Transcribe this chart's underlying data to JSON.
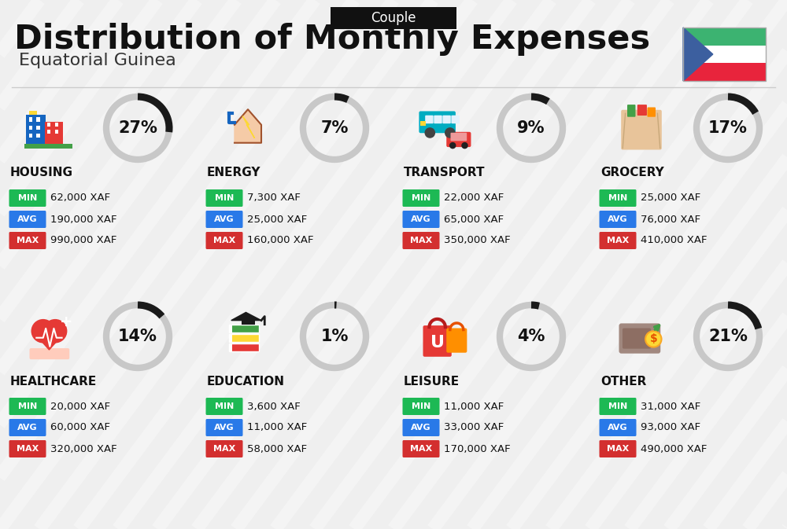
{
  "title": "Distribution of Monthly Expenses",
  "subtitle": "Equatorial Guinea",
  "top_label": "Couple",
  "bg_color": "#efefef",
  "categories": [
    {
      "name": "HOUSING",
      "pct": 27,
      "min_val": "62,000 XAF",
      "avg_val": "190,000 XAF",
      "max_val": "990,000 XAF",
      "col": 0,
      "row": 0
    },
    {
      "name": "ENERGY",
      "pct": 7,
      "min_val": "7,300 XAF",
      "avg_val": "25,000 XAF",
      "max_val": "160,000 XAF",
      "col": 1,
      "row": 0
    },
    {
      "name": "TRANSPORT",
      "pct": 9,
      "min_val": "22,000 XAF",
      "avg_val": "65,000 XAF",
      "max_val": "350,000 XAF",
      "col": 2,
      "row": 0
    },
    {
      "name": "GROCERY",
      "pct": 17,
      "min_val": "25,000 XAF",
      "avg_val": "76,000 XAF",
      "max_val": "410,000 XAF",
      "col": 3,
      "row": 0
    },
    {
      "name": "HEALTHCARE",
      "pct": 14,
      "min_val": "20,000 XAF",
      "avg_val": "60,000 XAF",
      "max_val": "320,000 XAF",
      "col": 0,
      "row": 1
    },
    {
      "name": "EDUCATION",
      "pct": 1,
      "min_val": "3,600 XAF",
      "avg_val": "11,000 XAF",
      "max_val": "58,000 XAF",
      "col": 1,
      "row": 1
    },
    {
      "name": "LEISURE",
      "pct": 4,
      "min_val": "11,000 XAF",
      "avg_val": "33,000 XAF",
      "max_val": "170,000 XAF",
      "col": 2,
      "row": 1
    },
    {
      "name": "OTHER",
      "pct": 21,
      "min_val": "31,000 XAF",
      "avg_val": "93,000 XAF",
      "max_val": "490,000 XAF",
      "col": 3,
      "row": 1
    }
  ],
  "min_color": "#1db954",
  "avg_color": "#2979e8",
  "max_color": "#d32f2f",
  "ring_color_dark": "#1a1a1a",
  "ring_color_light": "#c8c8c8",
  "flag_green": "#3cb371",
  "flag_white": "#ffffff",
  "flag_red": "#e8243c",
  "flag_blue": "#3c5f9f"
}
